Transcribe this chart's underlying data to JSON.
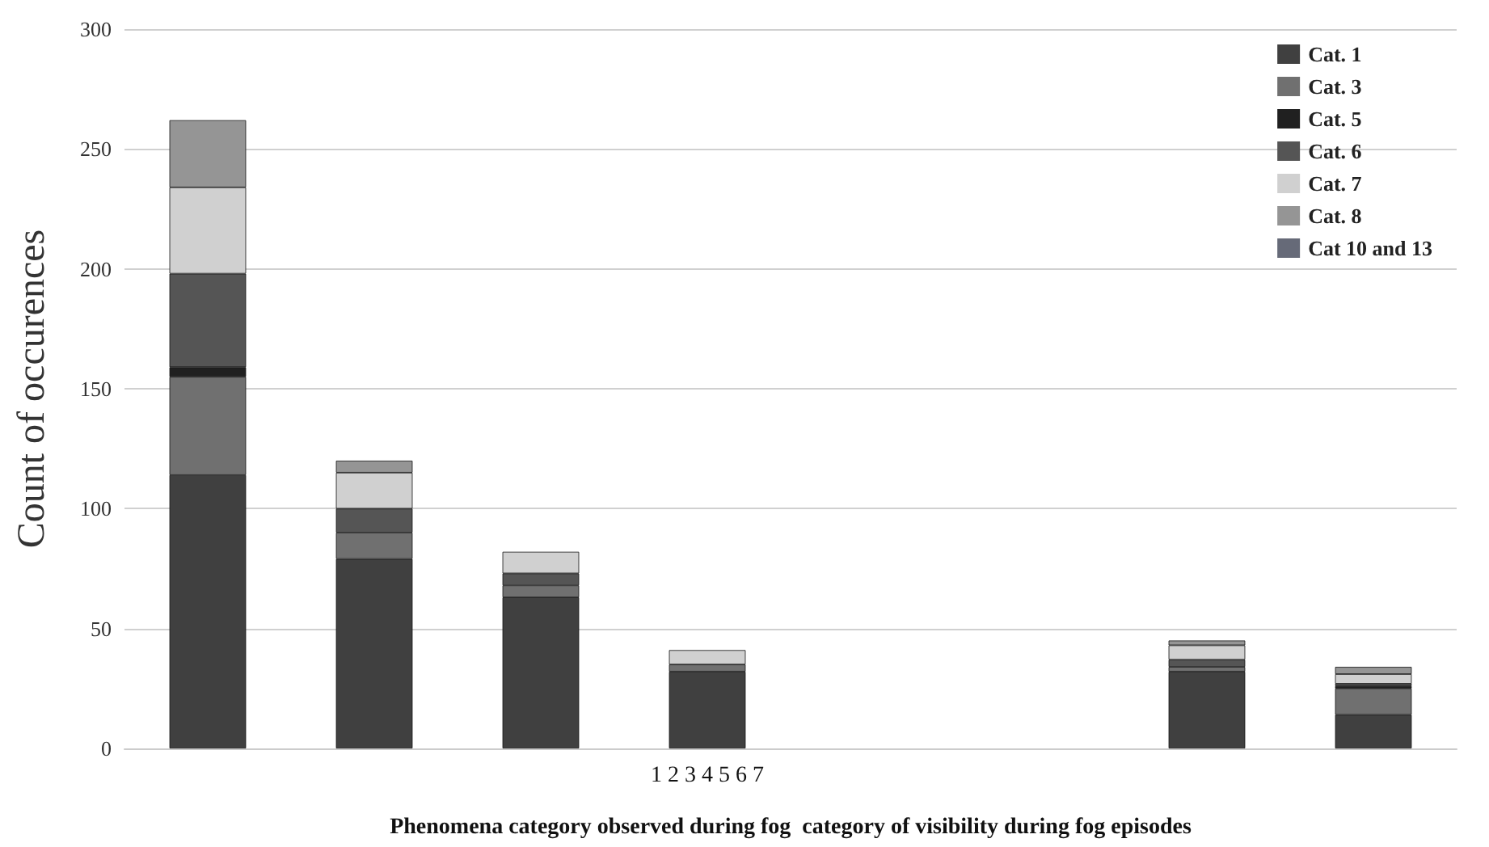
{
  "chart_data": {
    "type": "bar",
    "stacked": true,
    "xlabel": "Phenomena category observed during fog  category of visibility during fog episodes",
    "ylabel": "Count of occurences",
    "categories": [
      null,
      null,
      null,
      null,
      null,
      null,
      null,
      null
    ],
    "series": [
      {
        "name": "Cat. 1",
        "color": "#404040",
        "values": [
          114,
          79,
          63,
          32,
          0,
          0,
          32,
          14
        ]
      },
      {
        "name": "Cat. 3",
        "color": "#707070",
        "values": [
          41,
          11,
          5,
          3,
          null,
          null,
          2,
          11
        ]
      },
      {
        "name": "Cat. 5",
        "color": "#202020",
        "values": [
          4,
          null,
          null,
          null,
          null,
          null,
          null,
          1
        ]
      },
      {
        "name": "Cat. 6",
        "color": "#555555",
        "values": [
          39,
          10,
          5,
          null,
          null,
          null,
          3,
          1
        ]
      },
      {
        "name": "Cat. 7",
        "color": "#d0d0d0",
        "values": [
          36,
          15,
          9,
          6,
          null,
          null,
          6,
          4
        ]
      },
      {
        "name": "Cat. 8",
        "color": "#959595",
        "values": [
          28,
          5,
          null,
          null,
          null,
          null,
          2,
          3
        ]
      },
      {
        "name": "Cat 10 and 13",
        "color": "#666a78",
        "values": [
          null,
          null,
          null,
          null,
          null,
          null,
          null,
          null
        ]
      }
    ],
    "ylim": [
      0,
      300
    ],
    "yticks": [
      0,
      50,
      100,
      150,
      200,
      250,
      300
    ],
    "grid": "y",
    "legend": "top right",
    "annotations": [
      "1 2 3 4 5 6 7"
    ]
  }
}
